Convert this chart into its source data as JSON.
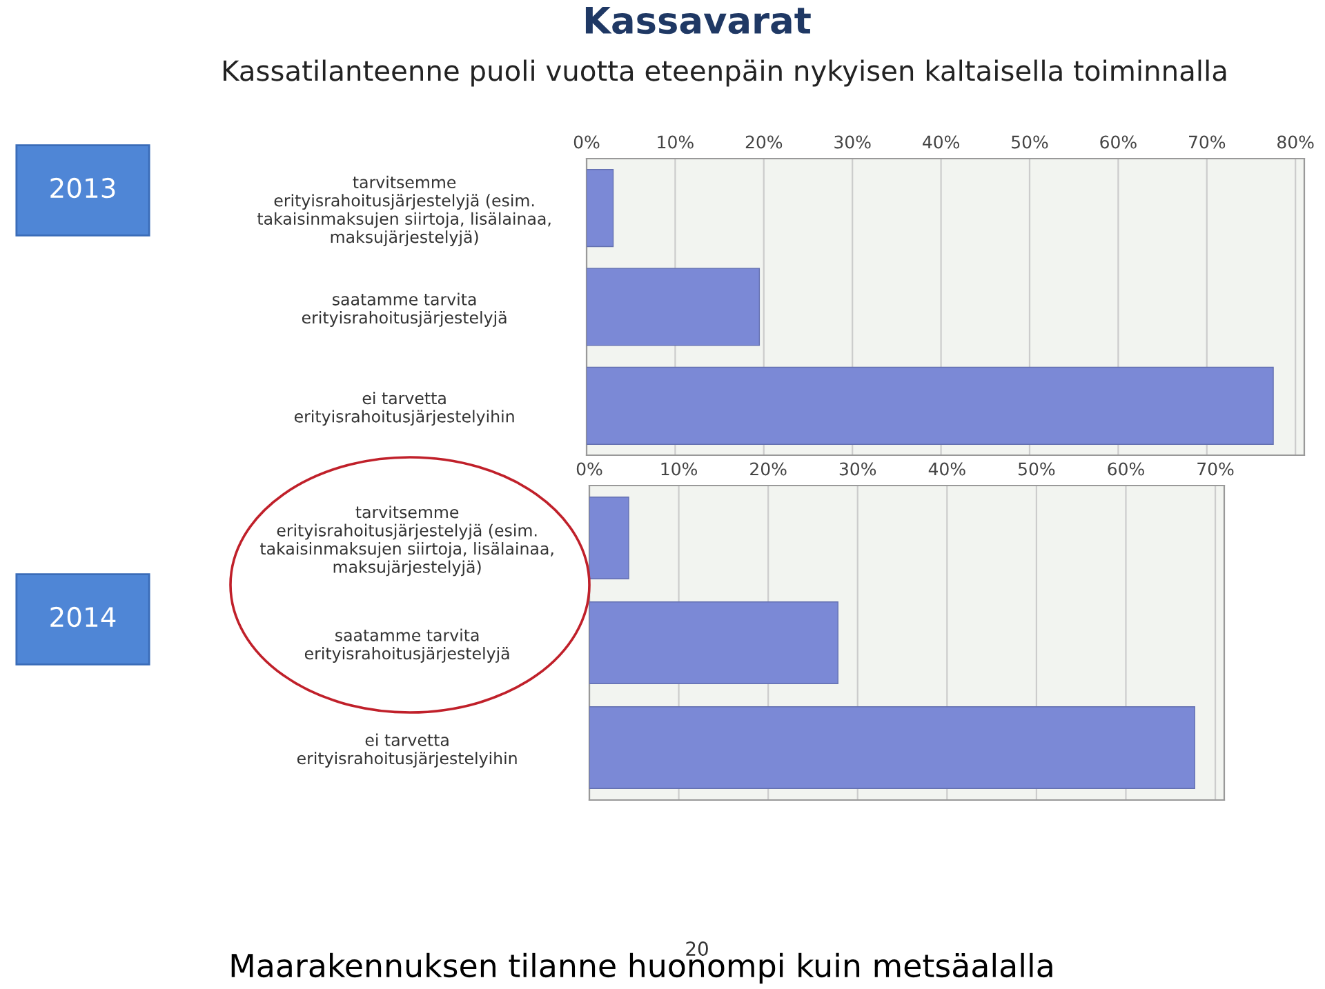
{
  "chart_data": [
    {
      "type": "bar",
      "orientation": "horizontal",
      "title": "Kassavarat",
      "subtitle": "Kassatilanteenne puoli vuotta eteenpäin nykyisen kaltaisella toiminnalla",
      "annotations": [
        "2013"
      ],
      "categories": [
        "tarvitsemme\nerityisrahoitusjärjestelyjä (esim.\ntakaisinmaksujen siirtoja, lisälainaa,\nmaksujärjestelyjä)",
        "saatamme tarvita\nerityisrahoitusjärjestelyjä",
        "ei tarvetta\nerityisrahoitusjärjestelyihin"
      ],
      "values": [
        3.0,
        19.5,
        77.5
      ],
      "color": "#7b89d6",
      "xlim": [
        0,
        81
      ],
      "xticks": [
        {
          "value": 0,
          "label": "0%"
        },
        {
          "value": 10,
          "label": "10%"
        },
        {
          "value": 20,
          "label": "20%"
        },
        {
          "value": 30,
          "label": "30%"
        },
        {
          "value": 40,
          "label": "40%"
        },
        {
          "value": 50,
          "label": "50%"
        },
        {
          "value": 60,
          "label": "60%"
        },
        {
          "value": 70,
          "label": "70%"
        },
        {
          "value": 80,
          "label": "80%"
        }
      ],
      "grid": "x"
    },
    {
      "type": "bar",
      "orientation": "horizontal",
      "annotations": [
        "2014",
        "Maarakennuksen tilanne huonompi kuin metsäalalla",
        "20"
      ],
      "categories": [
        "tarvitsemme\nerityisrahoitusjärjestelyjä (esim.\ntakaisinmaksujen siirtoja, lisälainaa,\nmaksujärjestelyjä)",
        "saatamme tarvita\nerityisrahoitusjärjestelyjä",
        "ei tarvetta\nerityisrahoitusjärjestelyihin"
      ],
      "values": [
        4.4,
        27.8,
        67.7
      ],
      "color": "#7b89d6",
      "xlim": [
        0,
        71
      ],
      "xticks": [
        {
          "value": 0,
          "label": "0%"
        },
        {
          "value": 10,
          "label": "10%"
        },
        {
          "value": 20,
          "label": "20%"
        },
        {
          "value": 30,
          "label": "30%"
        },
        {
          "value": 40,
          "label": "40%"
        },
        {
          "value": 50,
          "label": "50%"
        },
        {
          "value": 60,
          "label": "60%"
        },
        {
          "value": 70,
          "label": "70%"
        }
      ],
      "grid": "x"
    }
  ]
}
